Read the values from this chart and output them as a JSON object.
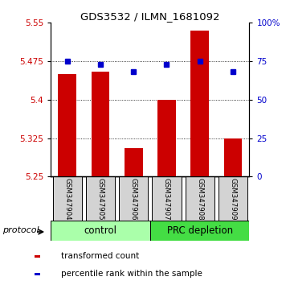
{
  "title": "GDS3532 / ILMN_1681092",
  "samples": [
    "GSM347904",
    "GSM347905",
    "GSM347906",
    "GSM347907",
    "GSM347908",
    "GSM347909"
  ],
  "bar_values": [
    5.45,
    5.455,
    5.305,
    5.4,
    5.535,
    5.325
  ],
  "percentile_values": [
    75,
    73,
    68,
    73,
    75,
    68
  ],
  "bar_bottom": 5.25,
  "ylim": [
    5.25,
    5.55
  ],
  "yticks_left": [
    5.25,
    5.325,
    5.4,
    5.475,
    5.55
  ],
  "yticks_right": [
    0,
    25,
    50,
    75,
    100
  ],
  "bar_color": "#cc0000",
  "percentile_color": "#0000cc",
  "control_color": "#aaffaa",
  "prc_color": "#44dd44",
  "group_labels": [
    "control",
    "PRC depletion"
  ],
  "legend_bar_label": "transformed count",
  "legend_pct_label": "percentile rank within the sample",
  "protocol_label": "protocol",
  "fig_width": 3.61,
  "fig_height": 3.54
}
